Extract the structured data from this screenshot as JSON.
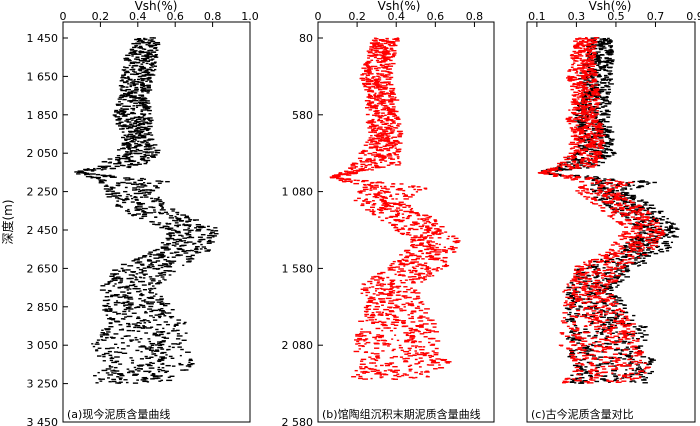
{
  "chart_data": [
    {
      "type": "scatter",
      "panel_label": "(a)现今泥质含量曲线",
      "xlabel": "Vsh(%)",
      "ylabel": "深度(m)",
      "xlim": [
        0,
        1.0
      ],
      "ylim": [
        1450,
        3450
      ],
      "y_inverted": true,
      "x_ticks": [
        0,
        0.2,
        0.4,
        0.6,
        0.8,
        1.0
      ],
      "x_tick_labels": [
        "0",
        "0.2",
        "0.4",
        "0.6",
        "0.8",
        "1.0"
      ],
      "y_ticks": [
        1450,
        1650,
        1850,
        2050,
        2250,
        2450,
        2650,
        2850,
        3050,
        3250,
        3450
      ],
      "y_tick_labels": [
        "1 450",
        "1 650",
        "1 850",
        "2 050",
        "2 250",
        "2 450",
        "2 650",
        "2 850",
        "3 050",
        "3 250",
        "3 450"
      ],
      "series": [
        {
          "color": "#000000",
          "depth": [
            1450,
            1550,
            1650,
            1750,
            1850,
            1950,
            2050,
            2120,
            2150,
            2200,
            2250,
            2350,
            2450,
            2550,
            2650,
            2750,
            2850,
            2950,
            3050,
            3150,
            3250
          ],
          "vsh_center": [
            0.45,
            0.42,
            0.4,
            0.38,
            0.37,
            0.4,
            0.4,
            0.3,
            0.08,
            0.4,
            0.35,
            0.45,
            0.7,
            0.65,
            0.45,
            0.35,
            0.4,
            0.45,
            0.4,
            0.45,
            0.35
          ],
          "vsh_spread": [
            0.12,
            0.16,
            0.18,
            0.14,
            0.2,
            0.16,
            0.22,
            0.25,
            0.03,
            0.4,
            0.25,
            0.3,
            0.28,
            0.3,
            0.35,
            0.3,
            0.35,
            0.45,
            0.5,
            0.5,
            0.45
          ]
        }
      ]
    },
    {
      "type": "scatter",
      "panel_label": "(b)馆陶组沉积末期泥质含量曲线",
      "xlabel": "Vsh(%)",
      "xlim": [
        0,
        0.9
      ],
      "ylim": [
        80,
        2580
      ],
      "y_inverted": true,
      "x_ticks": [
        0,
        0.2,
        0.4,
        0.6,
        0.8
      ],
      "x_tick_labels": [
        "0",
        "0.2",
        "0.4",
        "0.6",
        "0.8"
      ],
      "y_ticks": [
        80,
        580,
        1080,
        1580,
        2080,
        2580
      ],
      "y_tick_labels": [
        "80",
        "580",
        "1 080",
        "1 580",
        "2 080",
        "2 580"
      ],
      "series": [
        {
          "color": "#ff0000",
          "depth": [
            80,
            200,
            330,
            450,
            580,
            700,
            830,
            900,
            990,
            1050,
            1150,
            1250,
            1400,
            1500,
            1580,
            1700,
            1830,
            1950,
            2080,
            2200,
            2300
          ],
          "vsh_center": [
            0.35,
            0.32,
            0.3,
            0.33,
            0.33,
            0.35,
            0.32,
            0.3,
            0.08,
            0.4,
            0.3,
            0.45,
            0.6,
            0.55,
            0.5,
            0.35,
            0.4,
            0.4,
            0.4,
            0.45,
            0.35
          ],
          "vsh_spread": [
            0.12,
            0.14,
            0.16,
            0.15,
            0.16,
            0.16,
            0.2,
            0.25,
            0.03,
            0.35,
            0.25,
            0.28,
            0.24,
            0.28,
            0.3,
            0.28,
            0.32,
            0.4,
            0.45,
            0.45,
            0.4
          ]
        }
      ]
    },
    {
      "type": "scatter",
      "panel_label": "(c)古今泥质含量对比",
      "xlabel": "Vsh(%)",
      "xlim": [
        0.05,
        0.9
      ],
      "y_inverted": true,
      "x_ticks": [
        0.1,
        0.3,
        0.5,
        0.7,
        0.9
      ],
      "x_tick_labels": [
        "0.1",
        "0.3",
        "0.5",
        "0.7",
        "0.9"
      ],
      "series": [
        {
          "color": "#000000",
          "depth": [
            1450,
            1550,
            1650,
            1750,
            1850,
            1950,
            2050,
            2120,
            2150,
            2200,
            2250,
            2350,
            2450,
            2550,
            2650,
            2750,
            2850,
            2950,
            3050,
            3150,
            3250
          ],
          "vsh_center": [
            0.42,
            0.42,
            0.4,
            0.4,
            0.38,
            0.4,
            0.4,
            0.3,
            0.12,
            0.55,
            0.45,
            0.6,
            0.72,
            0.65,
            0.45,
            0.38,
            0.4,
            0.45,
            0.45,
            0.5,
            0.45
          ],
          "vsh_spread": [
            0.1,
            0.14,
            0.16,
            0.14,
            0.18,
            0.16,
            0.2,
            0.22,
            0.03,
            0.3,
            0.22,
            0.25,
            0.2,
            0.25,
            0.3,
            0.25,
            0.3,
            0.4,
            0.42,
            0.42,
            0.4
          ]
        },
        {
          "color": "#ff0000",
          "depth": [
            1450,
            1550,
            1650,
            1750,
            1850,
            1950,
            2050,
            2120,
            2150,
            2200,
            2250,
            2350,
            2450,
            2550,
            2650,
            2750,
            2850,
            2950,
            3050,
            3150,
            3250
          ],
          "vsh_center": [
            0.35,
            0.33,
            0.33,
            0.35,
            0.33,
            0.36,
            0.35,
            0.3,
            0.12,
            0.45,
            0.4,
            0.55,
            0.65,
            0.58,
            0.42,
            0.35,
            0.38,
            0.42,
            0.42,
            0.48,
            0.42
          ],
          "vsh_spread": [
            0.1,
            0.12,
            0.14,
            0.13,
            0.16,
            0.15,
            0.18,
            0.2,
            0.03,
            0.28,
            0.2,
            0.24,
            0.2,
            0.24,
            0.28,
            0.24,
            0.28,
            0.38,
            0.4,
            0.4,
            0.38
          ]
        }
      ]
    }
  ]
}
